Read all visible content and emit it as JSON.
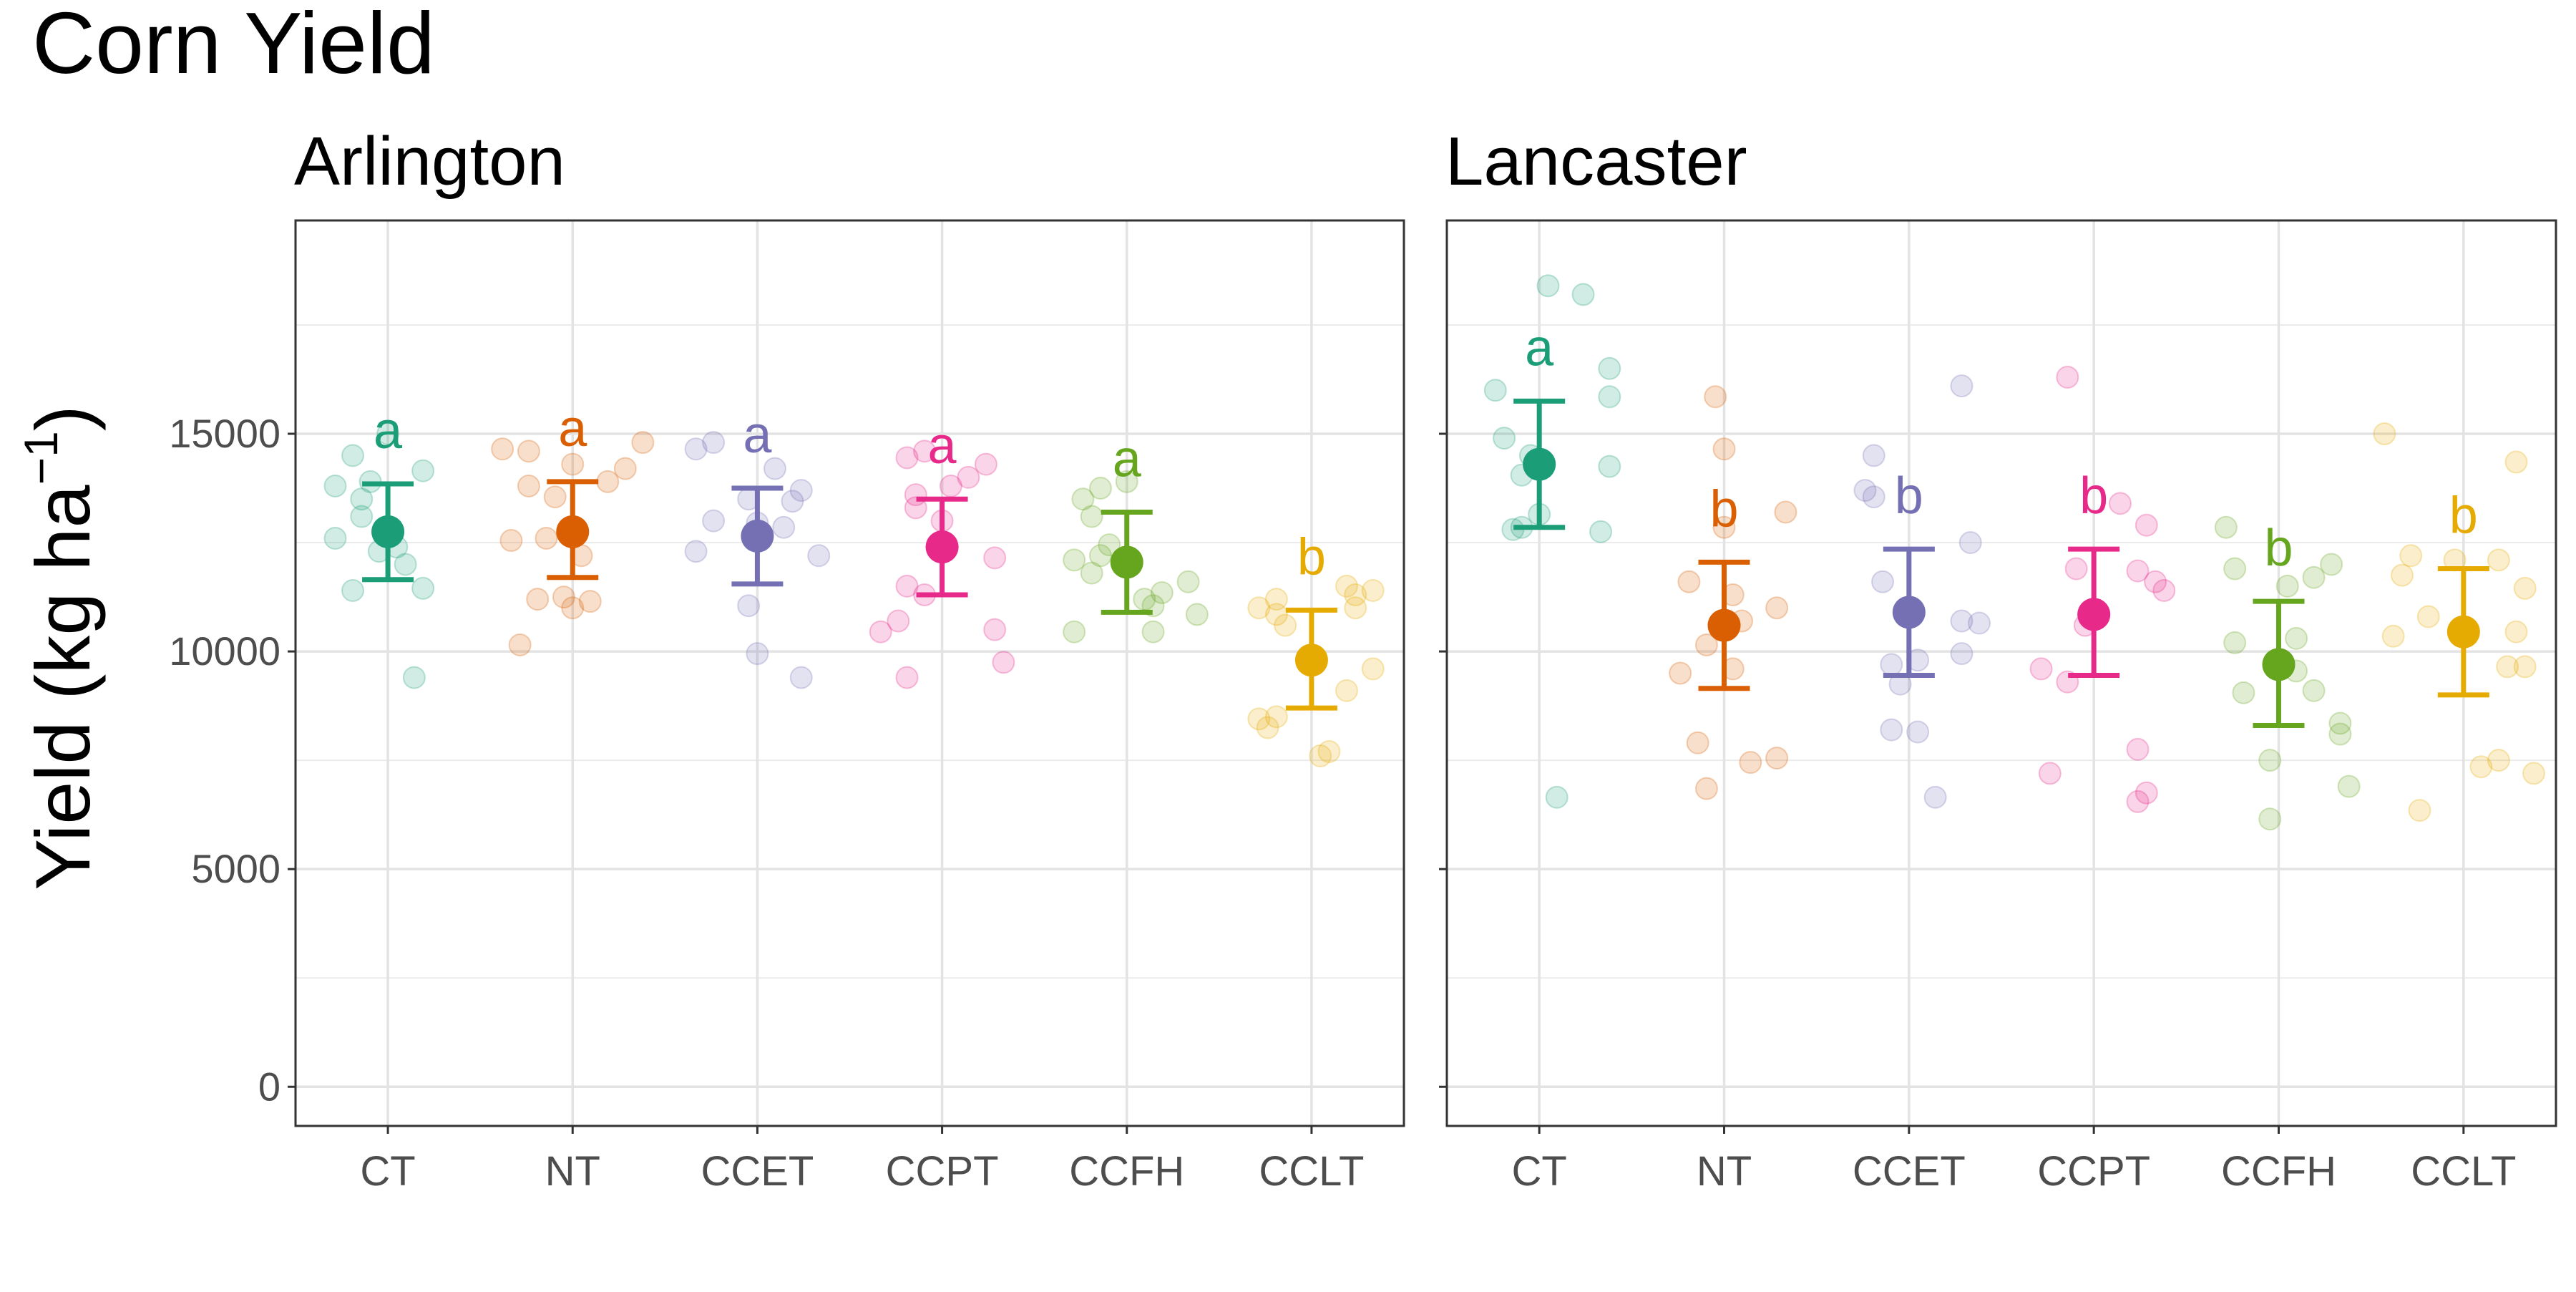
{
  "chart_data": {
    "type": "scatter",
    "title": "Corn Yield",
    "ylabel": "Yield (kg ha",
    "ylabel_sup": "−1",
    "ylabel_close": ")",
    "ylim": [
      -900,
      19900
    ],
    "yticks": [
      0,
      5000,
      10000,
      15000
    ],
    "ytick_labels": [
      "0",
      "5000",
      "10000",
      "15000"
    ],
    "categories": [
      "CT",
      "NT",
      "CCET",
      "CCPT",
      "CCFH",
      "CCLT"
    ],
    "colors": {
      "CT": "#1b9e77",
      "NT": "#d95f02",
      "CCET": "#7570b3",
      "CCPT": "#e7298a",
      "CCFH": "#66a61e",
      "CCLT": "#e6ab02"
    },
    "grid": true,
    "panels": [
      {
        "name": "Arlington",
        "groups": [
          {
            "category": "CT",
            "mean": 12750,
            "lower": 11650,
            "upper": 13850,
            "letter": "a",
            "points": [
              [
                -0.3,
                13800
              ],
              [
                -0.2,
                14500
              ],
              [
                -0.15,
                13500
              ],
              [
                -0.1,
                13900
              ],
              [
                0.0,
                15000
              ],
              [
                0.2,
                14150
              ],
              [
                -0.3,
                12600
              ],
              [
                -0.05,
                12300
              ],
              [
                0.05,
                12400
              ],
              [
                0.1,
                12000
              ],
              [
                0.2,
                11450
              ],
              [
                -0.2,
                11400
              ],
              [
                0.15,
                9400
              ],
              [
                -0.15,
                13100
              ]
            ]
          },
          {
            "category": "NT",
            "mean": 12750,
            "lower": 11700,
            "upper": 13900,
            "letter": "a",
            "points": [
              [
                -0.4,
                14650
              ],
              [
                -0.25,
                14600
              ],
              [
                -0.25,
                13800
              ],
              [
                -0.1,
                13550
              ],
              [
                0.0,
                14300
              ],
              [
                0.2,
                13900
              ],
              [
                0.3,
                14200
              ],
              [
                0.4,
                14800
              ],
              [
                -0.35,
                12550
              ],
              [
                -0.15,
                12600
              ],
              [
                0.05,
                12200
              ],
              [
                -0.2,
                11200
              ],
              [
                0.0,
                11000
              ],
              [
                -0.05,
                11250
              ],
              [
                0.1,
                11150
              ],
              [
                -0.3,
                10150
              ]
            ]
          },
          {
            "category": "CCET",
            "mean": 12650,
            "lower": 11550,
            "upper": 13750,
            "letter": "a",
            "points": [
              [
                -0.35,
                14650
              ],
              [
                -0.25,
                14800
              ],
              [
                0.1,
                14200
              ],
              [
                -0.05,
                13500
              ],
              [
                0.25,
                13700
              ],
              [
                0.2,
                13450
              ],
              [
                -0.35,
                12300
              ],
              [
                -0.25,
                13000
              ],
              [
                0.15,
                12850
              ],
              [
                0.0,
                12950
              ],
              [
                0.35,
                12200
              ],
              [
                -0.05,
                11050
              ],
              [
                0.0,
                9950
              ],
              [
                0.25,
                9400
              ]
            ]
          },
          {
            "category": "CCPT",
            "mean": 12400,
            "lower": 11300,
            "upper": 13500,
            "letter": "a",
            "points": [
              [
                -0.2,
                14450
              ],
              [
                -0.1,
                14600
              ],
              [
                0.05,
                13800
              ],
              [
                0.15,
                14000
              ],
              [
                0.25,
                14300
              ],
              [
                -0.15,
                13600
              ],
              [
                -0.15,
                13300
              ],
              [
                0.0,
                13000
              ],
              [
                0.3,
                12150
              ],
              [
                -0.2,
                11500
              ],
              [
                -0.1,
                11300
              ],
              [
                -0.25,
                10700
              ],
              [
                -0.35,
                10450
              ],
              [
                0.3,
                10500
              ],
              [
                0.35,
                9750
              ],
              [
                -0.2,
                9400
              ]
            ]
          },
          {
            "category": "CCFH",
            "mean": 12050,
            "lower": 10900,
            "upper": 13200,
            "letter": "a",
            "points": [
              [
                -0.25,
                13500
              ],
              [
                -0.2,
                13100
              ],
              [
                -0.15,
                13750
              ],
              [
                0.0,
                13900
              ],
              [
                -0.1,
                12450
              ],
              [
                -0.3,
                12100
              ],
              [
                -0.2,
                11800
              ],
              [
                -0.15,
                12200
              ],
              [
                0.2,
                11350
              ],
              [
                0.35,
                11600
              ],
              [
                0.4,
                10850
              ],
              [
                0.15,
                11050
              ],
              [
                0.1,
                11200
              ],
              [
                -0.3,
                10450
              ],
              [
                0.15,
                10450
              ]
            ]
          },
          {
            "category": "CCLT",
            "mean": 9800,
            "lower": 8700,
            "upper": 10950,
            "letter": "b",
            "points": [
              [
                -0.3,
                11000
              ],
              [
                -0.2,
                11200
              ],
              [
                -0.2,
                10850
              ],
              [
                -0.15,
                10600
              ],
              [
                0.2,
                11500
              ],
              [
                0.25,
                11300
              ],
              [
                0.35,
                11400
              ],
              [
                0.25,
                11000
              ],
              [
                -0.3,
                8450
              ],
              [
                -0.25,
                8250
              ],
              [
                -0.2,
                8500
              ],
              [
                0.05,
                7600
              ],
              [
                0.1,
                7700
              ],
              [
                0.2,
                9100
              ],
              [
                0.35,
                9600
              ]
            ]
          }
        ]
      },
      {
        "name": "Lancaster",
        "groups": [
          {
            "category": "CT",
            "mean": 14300,
            "lower": 12850,
            "upper": 15750,
            "letter": "a",
            "points": [
              [
                -0.25,
                16000
              ],
              [
                -0.2,
                14900
              ],
              [
                -0.1,
                14050
              ],
              [
                -0.05,
                14500
              ],
              [
                0.05,
                18400
              ],
              [
                0.25,
                18200
              ],
              [
                0.4,
                16500
              ],
              [
                0.4,
                15850
              ],
              [
                0.4,
                14250
              ],
              [
                -0.1,
                12850
              ],
              [
                -0.15,
                12800
              ],
              [
                0.0,
                13150
              ],
              [
                0.35,
                12750
              ],
              [
                0.1,
                6650
              ]
            ]
          },
          {
            "category": "NT",
            "mean": 10600,
            "lower": 9150,
            "upper": 12050,
            "letter": "b",
            "points": [
              [
                -0.05,
                15850
              ],
              [
                0.0,
                14650
              ],
              [
                0.0,
                12850
              ],
              [
                0.05,
                11300
              ],
              [
                0.1,
                10700
              ],
              [
                -0.1,
                10150
              ],
              [
                -0.2,
                11600
              ],
              [
                0.3,
                11000
              ],
              [
                0.35,
                13200
              ],
              [
                0.05,
                9600
              ],
              [
                -0.25,
                9500
              ],
              [
                0.15,
                7450
              ],
              [
                0.3,
                7550
              ],
              [
                -0.15,
                7900
              ],
              [
                -0.1,
                6850
              ]
            ]
          },
          {
            "category": "CCET",
            "mean": 10900,
            "lower": 9450,
            "upper": 12350,
            "letter": "b",
            "points": [
              [
                -0.2,
                14500
              ],
              [
                -0.25,
                13700
              ],
              [
                -0.2,
                13550
              ],
              [
                0.3,
                16100
              ],
              [
                -0.15,
                11600
              ],
              [
                0.35,
                12500
              ],
              [
                0.3,
                10700
              ],
              [
                0.4,
                10650
              ],
              [
                -0.1,
                9700
              ],
              [
                0.05,
                9800
              ],
              [
                -0.05,
                9250
              ],
              [
                0.3,
                9950
              ],
              [
                -0.1,
                8200
              ],
              [
                0.05,
                8150
              ],
              [
                0.15,
                6650
              ]
            ]
          },
          {
            "category": "CCPT",
            "mean": 10850,
            "lower": 9450,
            "upper": 12350,
            "letter": "b",
            "points": [
              [
                -0.15,
                16300
              ],
              [
                0.15,
                13400
              ],
              [
                0.3,
                12900
              ],
              [
                0.25,
                11850
              ],
              [
                0.35,
                11600
              ],
              [
                0.4,
                11400
              ],
              [
                -0.1,
                11900
              ],
              [
                -0.05,
                10600
              ],
              [
                -0.3,
                9600
              ],
              [
                -0.15,
                9300
              ],
              [
                0.25,
                7750
              ],
              [
                0.3,
                6750
              ],
              [
                0.25,
                6550
              ],
              [
                -0.25,
                7200
              ]
            ]
          },
          {
            "category": "CCFH",
            "mean": 9700,
            "lower": 8300,
            "upper": 11150,
            "letter": "b",
            "points": [
              [
                -0.3,
                12850
              ],
              [
                -0.25,
                11900
              ],
              [
                0.2,
                11700
              ],
              [
                0.3,
                12000
              ],
              [
                0.05,
                11500
              ],
              [
                -0.25,
                10200
              ],
              [
                -0.2,
                9050
              ],
              [
                0.1,
                9550
              ],
              [
                0.2,
                9100
              ],
              [
                0.35,
                8350
              ],
              [
                0.35,
                8100
              ],
              [
                -0.05,
                7500
              ],
              [
                0.4,
                6900
              ],
              [
                -0.05,
                6150
              ],
              [
                0.1,
                10300
              ]
            ]
          },
          {
            "category": "CCLT",
            "mean": 10450,
            "lower": 9000,
            "upper": 11900,
            "letter": "b",
            "points": [
              [
                -0.45,
                15000
              ],
              [
                -0.3,
                12200
              ],
              [
                -0.35,
                11750
              ],
              [
                -0.05,
                12100
              ],
              [
                0.2,
                12100
              ],
              [
                0.3,
                14350
              ],
              [
                0.35,
                11450
              ],
              [
                -0.2,
                10800
              ],
              [
                -0.4,
                10350
              ],
              [
                0.3,
                10450
              ],
              [
                0.25,
                9650
              ],
              [
                0.35,
                9650
              ],
              [
                0.1,
                7350
              ],
              [
                0.2,
                7500
              ],
              [
                0.4,
                7200
              ],
              [
                -0.25,
                6350
              ]
            ]
          }
        ]
      }
    ]
  }
}
